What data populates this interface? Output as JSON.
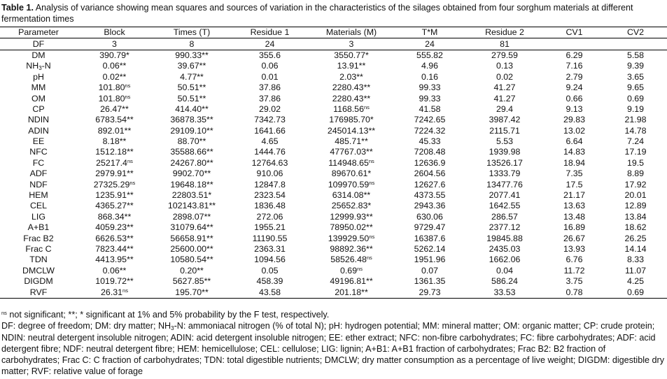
{
  "caption": {
    "label": "Table 1.",
    "text": " Analysis of variance showing mean squares and sources of variation in the characteristics of the silages obtained from four sorghum materials at different fermentation times"
  },
  "headers": [
    "Parameter",
    "Block",
    "Times (T)",
    "Residue 1",
    "Materials (M)",
    "T*M",
    "Residue 2",
    "CV1",
    "CV2"
  ],
  "df_row": [
    "DF",
    "3",
    "8",
    "24",
    "3",
    "24",
    "81",
    "",
    ""
  ],
  "rows": [
    {
      "param": "DM",
      "block": "390.79",
      "block_sig": "*",
      "times": "990.33",
      "times_sig": "**",
      "res1": "355.6",
      "mat": "3550.77",
      "mat_sig": "*",
      "tm": "555.82",
      "res2": "279.59",
      "cv1": "6.29",
      "cv2": "5.58"
    },
    {
      "param_main": "NH",
      "param_sub": "3",
      "param_tail": "-N",
      "block": "0.06",
      "block_sig": "**",
      "times": "39.67",
      "times_sig": "**",
      "res1": "0.06",
      "mat": "13.91",
      "mat_sig": "**",
      "tm": "4.96",
      "res2": "0.13",
      "cv1": "7.16",
      "cv2": "9.39"
    },
    {
      "param": "pH",
      "block": "0.02",
      "block_sig": "**",
      "times": "4.77",
      "times_sig": "**",
      "res1": "0.01",
      "mat": "2.03",
      "mat_sig": "**",
      "tm": "0.16",
      "res2": "0.02",
      "cv1": "2.79",
      "cv2": "3.65"
    },
    {
      "param": "MM",
      "block": "101.80",
      "block_sig": "ns",
      "times": "50.51",
      "times_sig": "**",
      "res1": "37.86",
      "mat": "2280.43",
      "mat_sig": "**",
      "tm": "99.33",
      "res2": "41.27",
      "cv1": "9.24",
      "cv2": "9.65"
    },
    {
      "param": "OM",
      "block": "101.80",
      "block_sig": "ns",
      "times": "50.51",
      "times_sig": "**",
      "res1": "37.86",
      "mat": "2280.43",
      "mat_sig": "**",
      "tm": "99.33",
      "res2": "41.27",
      "cv1": "0.66",
      "cv2": "0.69"
    },
    {
      "param": "CP",
      "block": "26.47",
      "block_sig": "**",
      "times": "414.40",
      "times_sig": "**",
      "res1": "29.02",
      "mat": "1168.56",
      "mat_sig": "ns",
      "tm": "41.58",
      "res2": "29.4",
      "cv1": "9.13",
      "cv2": "9.19"
    },
    {
      "param": "NDIN",
      "block": "6783.54",
      "block_sig": "**",
      "times": "36878.35",
      "times_sig": "**",
      "res1": "7342.73",
      "mat": "176985.70",
      "mat_sig": "*",
      "tm": "7242.65",
      "res2": "3987.42",
      "cv1": "29.83",
      "cv2": "21.98"
    },
    {
      "param": "ADIN",
      "block": "892.01",
      "block_sig": "**",
      "times": "29109.10",
      "times_sig": "**",
      "res1": "1641.66",
      "mat": "245014.13",
      "mat_sig": "**",
      "tm": "7224.32",
      "res2": "2115.71",
      "cv1": "13.02",
      "cv2": "14.78"
    },
    {
      "param": "EE",
      "block": "8.18",
      "block_sig": "**",
      "times": "88.70",
      "times_sig": "**",
      "res1": "4.65",
      "mat": "485.71",
      "mat_sig": "**",
      "tm": "45.33",
      "res2": "5.53",
      "cv1": "6.64",
      "cv2": "7.24"
    },
    {
      "param": "NFC",
      "block": "1512.18",
      "block_sig": "**",
      "times": "35588.66",
      "times_sig": "**",
      "res1": "1444.76",
      "mat": "47767.03",
      "mat_sig": "**",
      "tm": "7208.48",
      "res2": "1939.98",
      "cv1": "14.83",
      "cv2": "17.19"
    },
    {
      "param": "FC",
      "block": "25217.4",
      "block_sig": "ns",
      "times": "24267.80",
      "times_sig": "**",
      "res1": "12764.63",
      "mat": "114948.65",
      "mat_sig": "ns",
      "tm": "12636.9",
      "res2": "13526.17",
      "cv1": "18.94",
      "cv2": "19.5"
    },
    {
      "param": "ADF",
      "block": "2979.91",
      "block_sig": "**",
      "times": "9902.70",
      "times_sig": "**",
      "res1": "910.06",
      "mat": "89670.61",
      "mat_sig": "*",
      "tm": "2604.56",
      "res2": "1333.79",
      "cv1": "7.35",
      "cv2": "8.89"
    },
    {
      "param": "NDF",
      "block": "27325.29",
      "block_sig": "ns",
      "times": "19648.18",
      "times_sig": "**",
      "res1": "12847.8",
      "mat": "109970.59",
      "mat_sig": "ns",
      "tm": "12627.6",
      "res2": "13477.76",
      "cv1": "17.5",
      "cv2": "17.92"
    },
    {
      "param": "HEM",
      "block": "1235.91",
      "block_sig": "**",
      "times": "22803.51",
      "times_sig": "*",
      "res1": "2323.54",
      "mat": "6314.08",
      "mat_sig": "**",
      "tm": "4373.55",
      "res2": "2077.41",
      "cv1": "21.17",
      "cv2": "20.01"
    },
    {
      "param": "CEL",
      "block": "4365.27",
      "block_sig": "**",
      "times": "102143.81",
      "times_sig": "**",
      "res1": "1836.48",
      "mat": "25652.83",
      "mat_sig": "*",
      "tm": "2943.36",
      "res2": "1642.55",
      "cv1": "13.63",
      "cv2": "12.89"
    },
    {
      "param": "LIG",
      "block": "868.34",
      "block_sig": "**",
      "times": "2898.07",
      "times_sig": "**",
      "res1": "272.06",
      "mat": "12999.93",
      "mat_sig": "**",
      "tm": "630.06",
      "res2": "286.57",
      "cv1": "13.48",
      "cv2": "13.84"
    },
    {
      "param": "A+B1",
      "block": "4059.23",
      "block_sig": "**",
      "times": "31079.64",
      "times_sig": "**",
      "res1": "1955.21",
      "mat": "78950.02",
      "mat_sig": "**",
      "tm": "9729.47",
      "res2": "2377.12",
      "cv1": "16.89",
      "cv2": "18.62"
    },
    {
      "param": "Frac B2",
      "block": "6626.53",
      "block_sig": "**",
      "times": "56658.91",
      "times_sig": "**",
      "res1": "11190.55",
      "mat": "139929.50",
      "mat_sig": "ns",
      "tm": "16387.6",
      "res2": "19845.88",
      "cv1": "26.67",
      "cv2": "26.25"
    },
    {
      "param": "Frac C",
      "block": "7823.44",
      "block_sig": "**",
      "times": "25600.00",
      "times_sig": "**",
      "res1": "2363.31",
      "mat": "98892.36",
      "mat_sig": "**",
      "tm": "5262.14",
      "res2": "2435.03",
      "cv1": "13.93",
      "cv2": "14.14"
    },
    {
      "param": "TDN",
      "block": "4413.95",
      "block_sig": "**",
      "times": "10580.54",
      "times_sig": "**",
      "res1": "1094.56",
      "mat": "58526.48",
      "mat_sig": "ns",
      "tm": "1951.96",
      "res2": "1662.06",
      "cv1": "6.76",
      "cv2": "8.33"
    },
    {
      "param": "DMCLW",
      "block": "0.06",
      "block_sig": "**",
      "times": "0.20",
      "times_sig": "**",
      "res1": "0.05",
      "mat": "0.69",
      "mat_sig": "ns",
      "tm": "0.07",
      "res2": "0.04",
      "cv1": "11.72",
      "cv2": "11.07"
    },
    {
      "param": "DIGDM",
      "block": "1019.72",
      "block_sig": "**",
      "times": "5627.85",
      "times_sig": "**",
      "res1": "458.39",
      "mat": "49196.81",
      "mat_sig": "**",
      "tm": "1361.35",
      "res2": "586.24",
      "cv1": "3.75",
      "cv2": "4.25"
    },
    {
      "param": "RVF",
      "block": "26.31",
      "block_sig": "ns",
      "times": "195.70",
      "times_sig": "**",
      "res1": "43.58",
      "mat": "201.18",
      "mat_sig": "**",
      "tm": "29.73",
      "res2": "33.53",
      "cv1": "0.78",
      "cv2": "0.69"
    }
  ],
  "notes": {
    "sig_mark": "ns",
    "sig_text": " not significant; **; * significant at 1% and 5% probability by the F test, respectively.",
    "abbr_lead": "DF: degree of freedom; DM: dry matter; NH",
    "abbr_sub": "3",
    "abbr_rest": "-N: ammoniacal nitrogen (% of total N); pH: hydrogen potential; MM: mineral matter; OM: organic matter; CP: crude protein; NDIN: neutral detergent insoluble nitrogen; ADIN: acid detergent insoluble nitrogen; EE: ether extract; NFC: non-fibre carbohydrates; FC: fibre carbohydrates; ADF: acid detergent fibre; NDF: neutral detergent fibre; HEM: hemicellulose; CEL: cellulose; LIG: lignin; A+B1: A+B1 fraction of carbohydrates; Frac B2: B2 fraction of carbohydrates; Frac C: C fraction of carbohydrates; TDN: total digestible nutrients; DMCLW; dry matter consumption as a percentage of live weight; DIGDM: digestible dry matter; RVF: relative value of forage"
  }
}
